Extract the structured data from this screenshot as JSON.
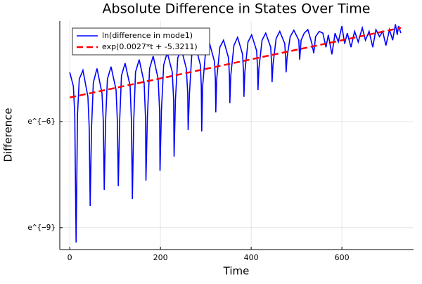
{
  "chart_data": {
    "type": "line",
    "title": "Absolute Difference in States Over Time",
    "xlabel": "Time",
    "ylabel": "Difference",
    "xlim": [
      -22,
      758
    ],
    "xticks": [
      0,
      200,
      400,
      600
    ],
    "ylim": [
      -9.62,
      -3.16
    ],
    "yticks": [
      {
        "value": -9,
        "label": "e^{−9}"
      },
      {
        "value": -6,
        "label": "e^{−6}"
      }
    ],
    "grid": true,
    "legend": "top-left",
    "series": [
      {
        "name": "ln(difference in mode1)",
        "color": "#0000ff",
        "dash": false,
        "x": [
          0,
          8,
          11,
          14,
          17,
          21,
          29,
          40,
          43,
          45,
          48,
          52,
          60,
          71,
          74,
          76,
          79,
          83,
          91,
          102,
          105,
          107,
          110,
          114,
          122,
          133,
          136,
          138,
          141,
          145,
          153,
          164,
          167,
          168,
          171,
          176,
          184,
          195,
          198,
          199,
          202,
          207,
          215,
          226,
          229,
          230,
          233,
          238,
          246,
          257,
          260,
          261,
          264,
          269,
          277,
          288,
          290,
          291,
          293,
          300,
          308,
          319,
          321,
          322,
          324,
          331,
          339,
          350,
          352,
          353,
          355,
          362,
          370,
          381,
          383,
          384,
          386,
          393,
          401,
          412,
          414,
          415,
          417,
          424,
          432,
          443,
          445,
          446,
          448,
          455,
          463,
          474,
          476,
          477,
          479,
          486,
          494,
          505,
          507,
          510,
          517,
          525,
          534,
          538,
          542,
          550,
          558,
          565,
          570,
          578,
          585,
          592,
          600,
          606,
          612,
          620,
          628,
          636,
          645,
          652,
          660,
          668,
          675,
          683,
          690,
          697,
          705,
          712,
          718,
          722,
          725,
          730
        ],
        "values": [
          -4.61,
          -5.0,
          -5.8,
          -9.42,
          -5.8,
          -4.8,
          -4.55,
          -5.3,
          -6.2,
          -8.39,
          -6.2,
          -4.9,
          -4.5,
          -5.2,
          -6.0,
          -7.93,
          -6.0,
          -4.8,
          -4.45,
          -5.1,
          -6.0,
          -7.83,
          -6.0,
          -4.7,
          -4.35,
          -5.0,
          -6.0,
          -8.19,
          -6.0,
          -4.6,
          -4.25,
          -4.9,
          -5.9,
          -7.67,
          -5.9,
          -4.5,
          -4.15,
          -4.8,
          -5.7,
          -7.39,
          -5.7,
          -4.4,
          -4.05,
          -4.6,
          -5.4,
          -6.99,
          -5.4,
          -4.2,
          -3.95,
          -4.5,
          -5.2,
          -6.24,
          -5.2,
          -4.1,
          -3.85,
          -4.4,
          -5.0,
          -6.28,
          -5.0,
          -3.95,
          -3.78,
          -4.3,
          -4.8,
          -5.74,
          -4.8,
          -3.9,
          -3.7,
          -4.2,
          -4.7,
          -5.48,
          -4.7,
          -3.85,
          -3.62,
          -4.1,
          -4.6,
          -5.3,
          -4.6,
          -3.75,
          -3.55,
          -4.0,
          -4.5,
          -5.11,
          -4.5,
          -3.7,
          -3.5,
          -3.9,
          -4.4,
          -4.89,
          -4.4,
          -3.65,
          -3.45,
          -3.8,
          -4.2,
          -4.61,
          -4.2,
          -3.6,
          -3.42,
          -3.7,
          -4.25,
          -3.7,
          -3.5,
          -3.4,
          -3.8,
          -4.07,
          -3.6,
          -3.45,
          -3.5,
          -3.9,
          -3.55,
          -4.1,
          -3.5,
          -3.75,
          -3.3,
          -3.8,
          -3.5,
          -3.9,
          -3.45,
          -3.75,
          -3.35,
          -3.7,
          -3.45,
          -3.9,
          -3.4,
          -3.6,
          -3.45,
          -3.85,
          -3.4,
          -3.7,
          -3.25,
          -3.55,
          -3.3,
          -3.5
        ]
      },
      {
        "name": "exp(0.0027*t + -5.3211)",
        "color": "#ff0000",
        "dash": true,
        "x": [
          0,
          730
        ],
        "values": [
          -5.3211,
          -3.3501
        ]
      }
    ]
  }
}
